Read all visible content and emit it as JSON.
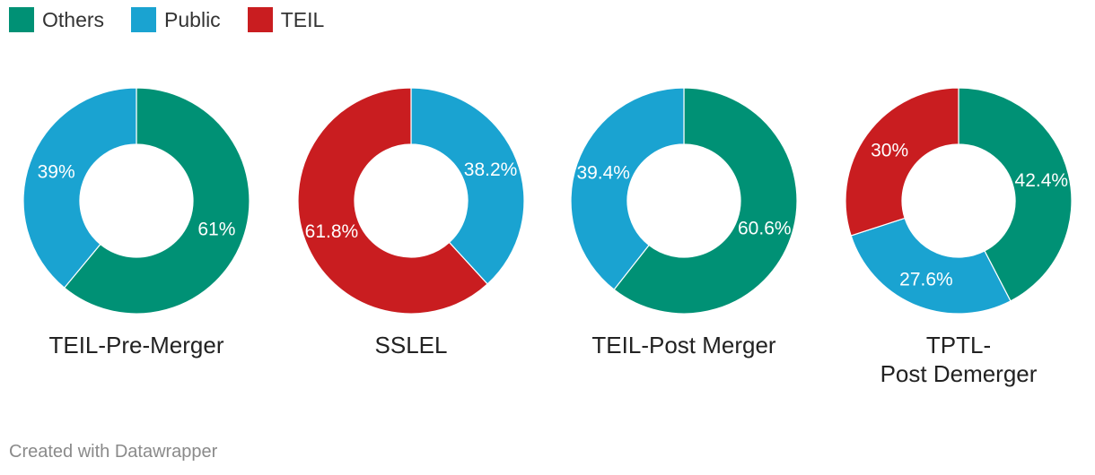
{
  "legend": [
    {
      "label": "Others",
      "color": "#009175"
    },
    {
      "label": "Public",
      "color": "#1aa3d1"
    },
    {
      "label": "TEIL",
      "color": "#c91d20"
    }
  ],
  "chart_data": [
    {
      "type": "pie",
      "title": "TEIL-Pre-Merger",
      "slices": [
        {
          "series": "Others",
          "value": 61,
          "label": "61%"
        },
        {
          "series": "Public",
          "value": 39,
          "label": "39%"
        }
      ]
    },
    {
      "type": "pie",
      "title": "SSLEL",
      "slices": [
        {
          "series": "Public",
          "value": 38.2,
          "label": "38.2%"
        },
        {
          "series": "TEIL",
          "value": 61.8,
          "label": "61.8%"
        }
      ]
    },
    {
      "type": "pie",
      "title": "TEIL-Post Merger",
      "slices": [
        {
          "series": "Others",
          "value": 60.6,
          "label": "60.6%"
        },
        {
          "series": "Public",
          "value": 39.4,
          "label": "39.4%"
        }
      ]
    },
    {
      "type": "pie",
      "title": "TPTL-\nPost Demerger",
      "slices": [
        {
          "series": "Others",
          "value": 42.4,
          "label": "42.4%"
        },
        {
          "series": "Public",
          "value": 27.6,
          "label": "27.6%"
        },
        {
          "series": "TEIL",
          "value": 30,
          "label": "30%"
        }
      ]
    }
  ],
  "footer": "Created with Datawrapper"
}
